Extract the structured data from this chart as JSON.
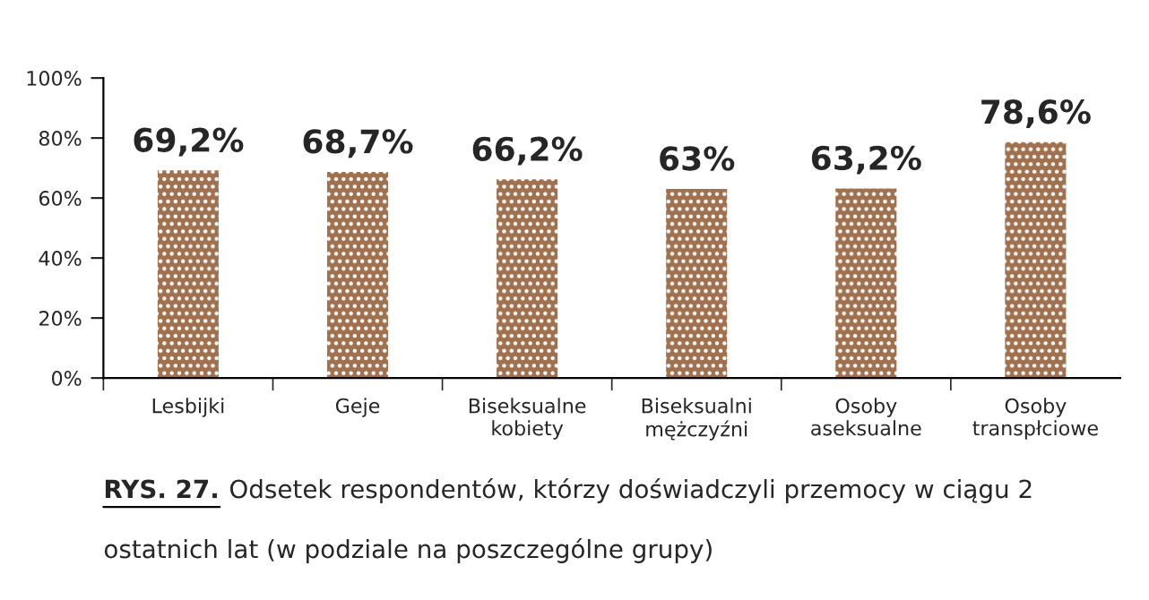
{
  "chart_data": {
    "type": "bar",
    "categories": [
      "Lesbijki",
      "Geje",
      "Biseksualne\nkobiety",
      "Biseksualni\nmężczyźni",
      "Osoby\naseksualne",
      "Osoby\ntranspłciowe"
    ],
    "values": [
      69.2,
      68.7,
      66.2,
      63,
      63.2,
      78.6
    ],
    "value_labels": [
      "69,2%",
      "68,7%",
      "66,2%",
      "63%",
      "63,2%",
      "78,6%"
    ],
    "color": "#a0714f",
    "ylim": [
      0,
      100
    ],
    "yticks": [
      {
        "value": 0,
        "label": "0%"
      },
      {
        "value": 20,
        "label": "20%"
      },
      {
        "value": 40,
        "label": "40%"
      },
      {
        "value": 60,
        "label": "60%"
      },
      {
        "value": 80,
        "label": "80%"
      },
      {
        "value": 100,
        "label": "100%"
      }
    ],
    "grid": false,
    "annotations": [
      "RYS. 27.",
      "Odsetek respondentów, którzy doświadczyli przemocy w ciągu 2 ostatnich lat (w podziale na poszczególne grupy)"
    ]
  }
}
